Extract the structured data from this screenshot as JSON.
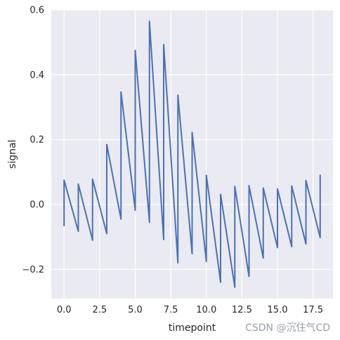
{
  "chart_data": {
    "type": "line",
    "title": "",
    "xlabel": "timepoint",
    "ylabel": "signal",
    "xlim": [
      -0.9,
      18.9
    ],
    "ylim": [
      -0.29,
      0.6
    ],
    "xticks": [
      0.0,
      2.5,
      5.0,
      7.5,
      10.0,
      12.5,
      15.0,
      17.5
    ],
    "xtick_labels": [
      "0.0",
      "2.5",
      "5.0",
      "7.5",
      "10.0",
      "12.5",
      "15.0",
      "17.5"
    ],
    "yticks": [
      -0.2,
      0.0,
      0.2,
      0.4,
      0.6
    ],
    "ytick_labels": [
      "−0.2",
      "0.0",
      "0.2",
      "0.4",
      "0.6"
    ],
    "grid": true,
    "background": "#eaeaf2",
    "series": [
      {
        "color": "#4c72b0",
        "points": [
          [
            0,
            -0.065
          ],
          [
            0,
            0.075
          ],
          [
            1,
            -0.083
          ],
          [
            1,
            0.063
          ],
          [
            2,
            -0.11
          ],
          [
            2,
            0.078
          ],
          [
            3,
            -0.09
          ],
          [
            3,
            0.185
          ],
          [
            4,
            -0.045
          ],
          [
            4,
            0.347
          ],
          [
            5,
            -0.018
          ],
          [
            5,
            0.475
          ],
          [
            6,
            -0.055
          ],
          [
            6,
            0.565
          ],
          [
            7,
            -0.108
          ],
          [
            7,
            0.493
          ],
          [
            8,
            -0.18
          ],
          [
            8,
            0.337
          ],
          [
            9,
            -0.152
          ],
          [
            9,
            0.222
          ],
          [
            10,
            -0.176
          ],
          [
            10,
            0.09
          ],
          [
            11,
            -0.24
          ],
          [
            11,
            0.031
          ],
          [
            12,
            -0.255
          ],
          [
            12,
            0.056
          ],
          [
            13,
            -0.222
          ],
          [
            13,
            0.058
          ],
          [
            14,
            -0.165
          ],
          [
            14,
            0.051
          ],
          [
            15,
            -0.133
          ],
          [
            15,
            0.048
          ],
          [
            16,
            -0.13
          ],
          [
            16,
            0.057
          ],
          [
            17,
            -0.122
          ],
          [
            17,
            0.074
          ],
          [
            18,
            -0.102
          ],
          [
            18,
            0.09
          ]
        ]
      }
    ]
  },
  "watermark": "CSDN @沉住气CD"
}
